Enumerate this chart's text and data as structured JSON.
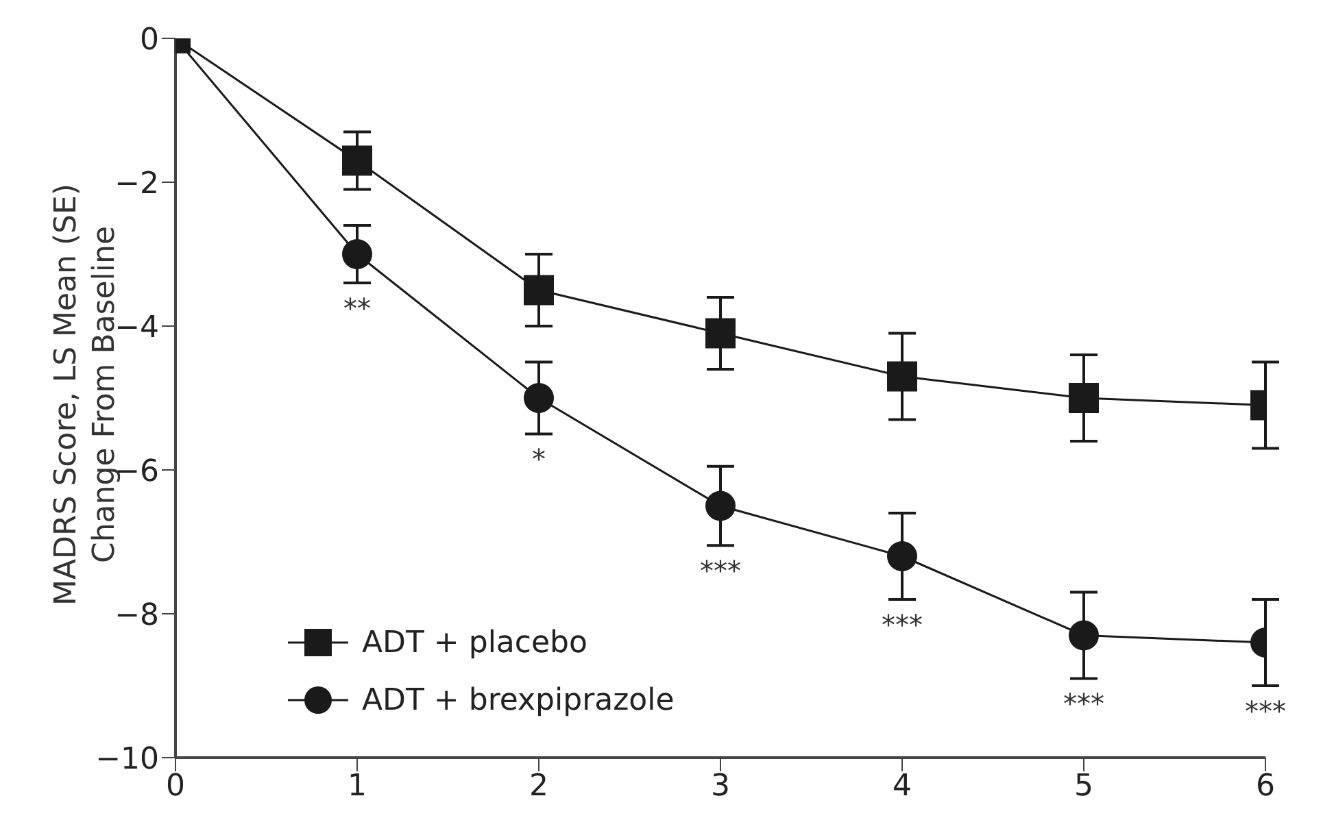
{
  "chart_data": {
    "type": "line",
    "ylabel": "MADRS Score, LS Mean (SE)\nChange From Baseline",
    "x": [
      0,
      1,
      2,
      3,
      4,
      5,
      6
    ],
    "series": [
      {
        "name": "ADT + placebo",
        "color": "#1a1a1a",
        "marker": "square",
        "values": [
          0,
          -1.7,
          -3.5,
          -4.1,
          -4.7,
          -5.0,
          -5.1
        ],
        "errors": [
          null,
          0.4,
          0.5,
          0.5,
          0.6,
          0.6,
          0.6
        ]
      },
      {
        "name": "ADT + brexpiprazole",
        "color": "#1a1a1a",
        "marker": "circle",
        "values": [
          0,
          -3.0,
          -5.0,
          -6.5,
          -7.2,
          -8.3,
          -8.4
        ],
        "errors": [
          null,
          0.4,
          0.5,
          0.55,
          0.6,
          0.6,
          0.6
        ]
      }
    ],
    "xlim": [
      0,
      6
    ],
    "xticks": [
      0,
      1,
      2,
      3,
      4,
      5,
      6
    ],
    "ylim": [
      -10,
      0
    ],
    "yticks": [
      -10,
      -8,
      -6,
      -4,
      -2,
      0
    ],
    "grid": false,
    "legend": "bottom left",
    "line_style": "solid",
    "annotations": [
      "**",
      "*",
      "***",
      "***",
      "***",
      "***"
    ]
  }
}
